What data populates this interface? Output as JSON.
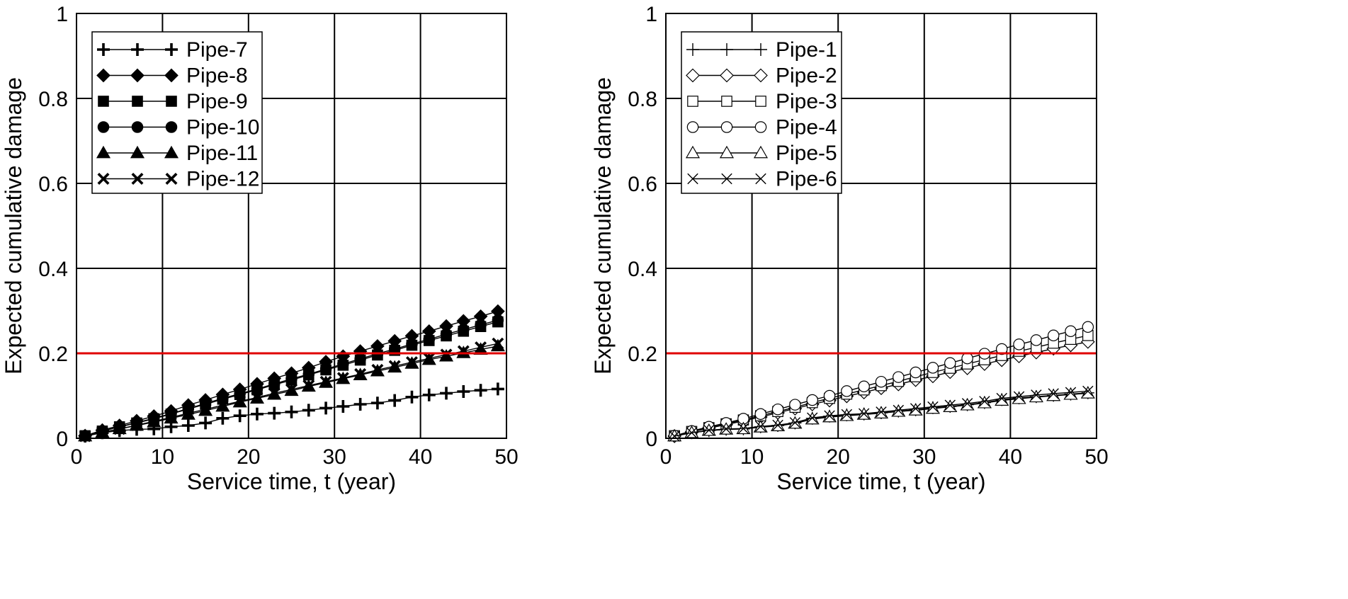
{
  "chart_data": [
    {
      "type": "line",
      "xlabel": "Service time, t (year)",
      "ylabel": "Expected cumulative damage",
      "xlim": [
        0,
        50
      ],
      "ylim": [
        0,
        1
      ],
      "xticks": [
        "0",
        "10",
        "20",
        "30",
        "40",
        "50"
      ],
      "yticks": [
        "0",
        "0.2",
        "0.4",
        "0.6",
        "0.8",
        "1"
      ],
      "grid": true,
      "legend_position": "top-left",
      "reference_line": {
        "y": 0.2,
        "color": "#e00000"
      },
      "x": [
        1,
        3,
        5,
        7,
        9,
        11,
        13,
        15,
        17,
        19,
        21,
        23,
        25,
        27,
        29,
        31,
        33,
        35,
        37,
        39,
        41,
        43,
        45,
        47,
        49
      ],
      "series": [
        {
          "name": "Pipe-7",
          "marker": "plus-bold",
          "values": [
            0.005,
            0.013,
            0.018,
            0.021,
            0.022,
            0.027,
            0.03,
            0.036,
            0.047,
            0.053,
            0.057,
            0.059,
            0.062,
            0.066,
            0.071,
            0.075,
            0.08,
            0.083,
            0.089,
            0.097,
            0.102,
            0.106,
            0.11,
            0.113,
            0.116
          ]
        },
        {
          "name": "Pipe-8",
          "marker": "diamond-filled",
          "values": [
            0.006,
            0.019,
            0.03,
            0.041,
            0.052,
            0.064,
            0.078,
            0.09,
            0.103,
            0.115,
            0.128,
            0.141,
            0.153,
            0.166,
            0.18,
            0.193,
            0.205,
            0.217,
            0.229,
            0.241,
            0.252,
            0.264,
            0.276,
            0.287,
            0.299
          ]
        },
        {
          "name": "Pipe-9",
          "marker": "square-filled",
          "values": [
            0.006,
            0.017,
            0.027,
            0.036,
            0.046,
            0.057,
            0.069,
            0.08,
            0.092,
            0.103,
            0.114,
            0.126,
            0.137,
            0.149,
            0.161,
            0.172,
            0.184,
            0.196,
            0.207,
            0.219,
            0.23,
            0.241,
            0.252,
            0.263,
            0.274
          ]
        },
        {
          "name": "Pipe-10",
          "marker": "circle-filled",
          "values": [
            0.006,
            0.017,
            0.027,
            0.037,
            0.047,
            0.058,
            0.07,
            0.082,
            0.094,
            0.105,
            0.116,
            0.128,
            0.14,
            0.151,
            0.163,
            0.175,
            0.187,
            0.199,
            0.21,
            0.222,
            0.233,
            0.245,
            0.256,
            0.267,
            0.278
          ]
        },
        {
          "name": "Pipe-11",
          "marker": "triangle-filled",
          "values": [
            0.005,
            0.014,
            0.022,
            0.03,
            0.038,
            0.047,
            0.056,
            0.065,
            0.075,
            0.085,
            0.094,
            0.103,
            0.112,
            0.122,
            0.131,
            0.14,
            0.149,
            0.158,
            0.167,
            0.176,
            0.185,
            0.193,
            0.201,
            0.209,
            0.217
          ]
        },
        {
          "name": "Pipe-12",
          "marker": "x-bold",
          "values": [
            0.005,
            0.014,
            0.022,
            0.031,
            0.04,
            0.049,
            0.059,
            0.068,
            0.078,
            0.087,
            0.096,
            0.106,
            0.115,
            0.124,
            0.133,
            0.142,
            0.151,
            0.161,
            0.17,
            0.179,
            0.188,
            0.197,
            0.205,
            0.214,
            0.223
          ]
        }
      ]
    },
    {
      "type": "line",
      "xlabel": "Service time, t (year)",
      "ylabel": "Expected cumulative damage",
      "xlim": [
        0,
        50
      ],
      "ylim": [
        0,
        1
      ],
      "xticks": [
        "0",
        "10",
        "20",
        "30",
        "40",
        "50"
      ],
      "yticks": [
        "0",
        "0.2",
        "0.4",
        "0.6",
        "0.8",
        "1"
      ],
      "grid": true,
      "legend_position": "top-left",
      "reference_line": {
        "y": 0.2,
        "color": "#e00000"
      },
      "x": [
        1,
        3,
        5,
        7,
        9,
        11,
        13,
        15,
        17,
        19,
        21,
        23,
        25,
        27,
        29,
        31,
        33,
        35,
        37,
        39,
        41,
        43,
        45,
        47,
        49
      ],
      "series": [
        {
          "name": "Pipe-1",
          "marker": "plus-thin",
          "values": [
            0.005,
            0.013,
            0.018,
            0.021,
            0.022,
            0.027,
            0.03,
            0.036,
            0.047,
            0.052,
            0.055,
            0.057,
            0.06,
            0.064,
            0.067,
            0.072,
            0.075,
            0.079,
            0.084,
            0.091,
            0.095,
            0.098,
            0.101,
            0.104,
            0.107
          ]
        },
        {
          "name": "Pipe-2",
          "marker": "diamond-open",
          "values": [
            0.005,
            0.015,
            0.024,
            0.032,
            0.041,
            0.05,
            0.06,
            0.07,
            0.08,
            0.089,
            0.099,
            0.108,
            0.118,
            0.127,
            0.137,
            0.146,
            0.156,
            0.165,
            0.175,
            0.184,
            0.193,
            0.202,
            0.211,
            0.219,
            0.227
          ]
        },
        {
          "name": "Pipe-3",
          "marker": "square-open",
          "values": [
            0.006,
            0.016,
            0.025,
            0.034,
            0.043,
            0.053,
            0.063,
            0.073,
            0.084,
            0.094,
            0.104,
            0.114,
            0.124,
            0.134,
            0.145,
            0.155,
            0.165,
            0.175,
            0.185,
            0.195,
            0.205,
            0.214,
            0.224,
            0.233,
            0.242
          ]
        },
        {
          "name": "Pipe-4",
          "marker": "circle-open",
          "values": [
            0.006,
            0.017,
            0.027,
            0.036,
            0.046,
            0.057,
            0.068,
            0.079,
            0.09,
            0.1,
            0.111,
            0.122,
            0.133,
            0.144,
            0.155,
            0.166,
            0.177,
            0.188,
            0.199,
            0.21,
            0.221,
            0.231,
            0.242,
            0.252,
            0.262
          ]
        },
        {
          "name": "Pipe-5",
          "marker": "triangle-open",
          "values": [
            0.005,
            0.013,
            0.018,
            0.021,
            0.022,
            0.026,
            0.029,
            0.035,
            0.045,
            0.05,
            0.053,
            0.056,
            0.059,
            0.063,
            0.066,
            0.07,
            0.074,
            0.078,
            0.083,
            0.089,
            0.093,
            0.097,
            0.1,
            0.103,
            0.106
          ]
        },
        {
          "name": "Pipe-6",
          "marker": "x-thin",
          "values": [
            0.005,
            0.013,
            0.019,
            0.022,
            0.023,
            0.028,
            0.031,
            0.037,
            0.048,
            0.053,
            0.056,
            0.058,
            0.062,
            0.066,
            0.07,
            0.074,
            0.078,
            0.082,
            0.087,
            0.094,
            0.098,
            0.102,
            0.105,
            0.108,
            0.111
          ]
        }
      ]
    }
  ]
}
